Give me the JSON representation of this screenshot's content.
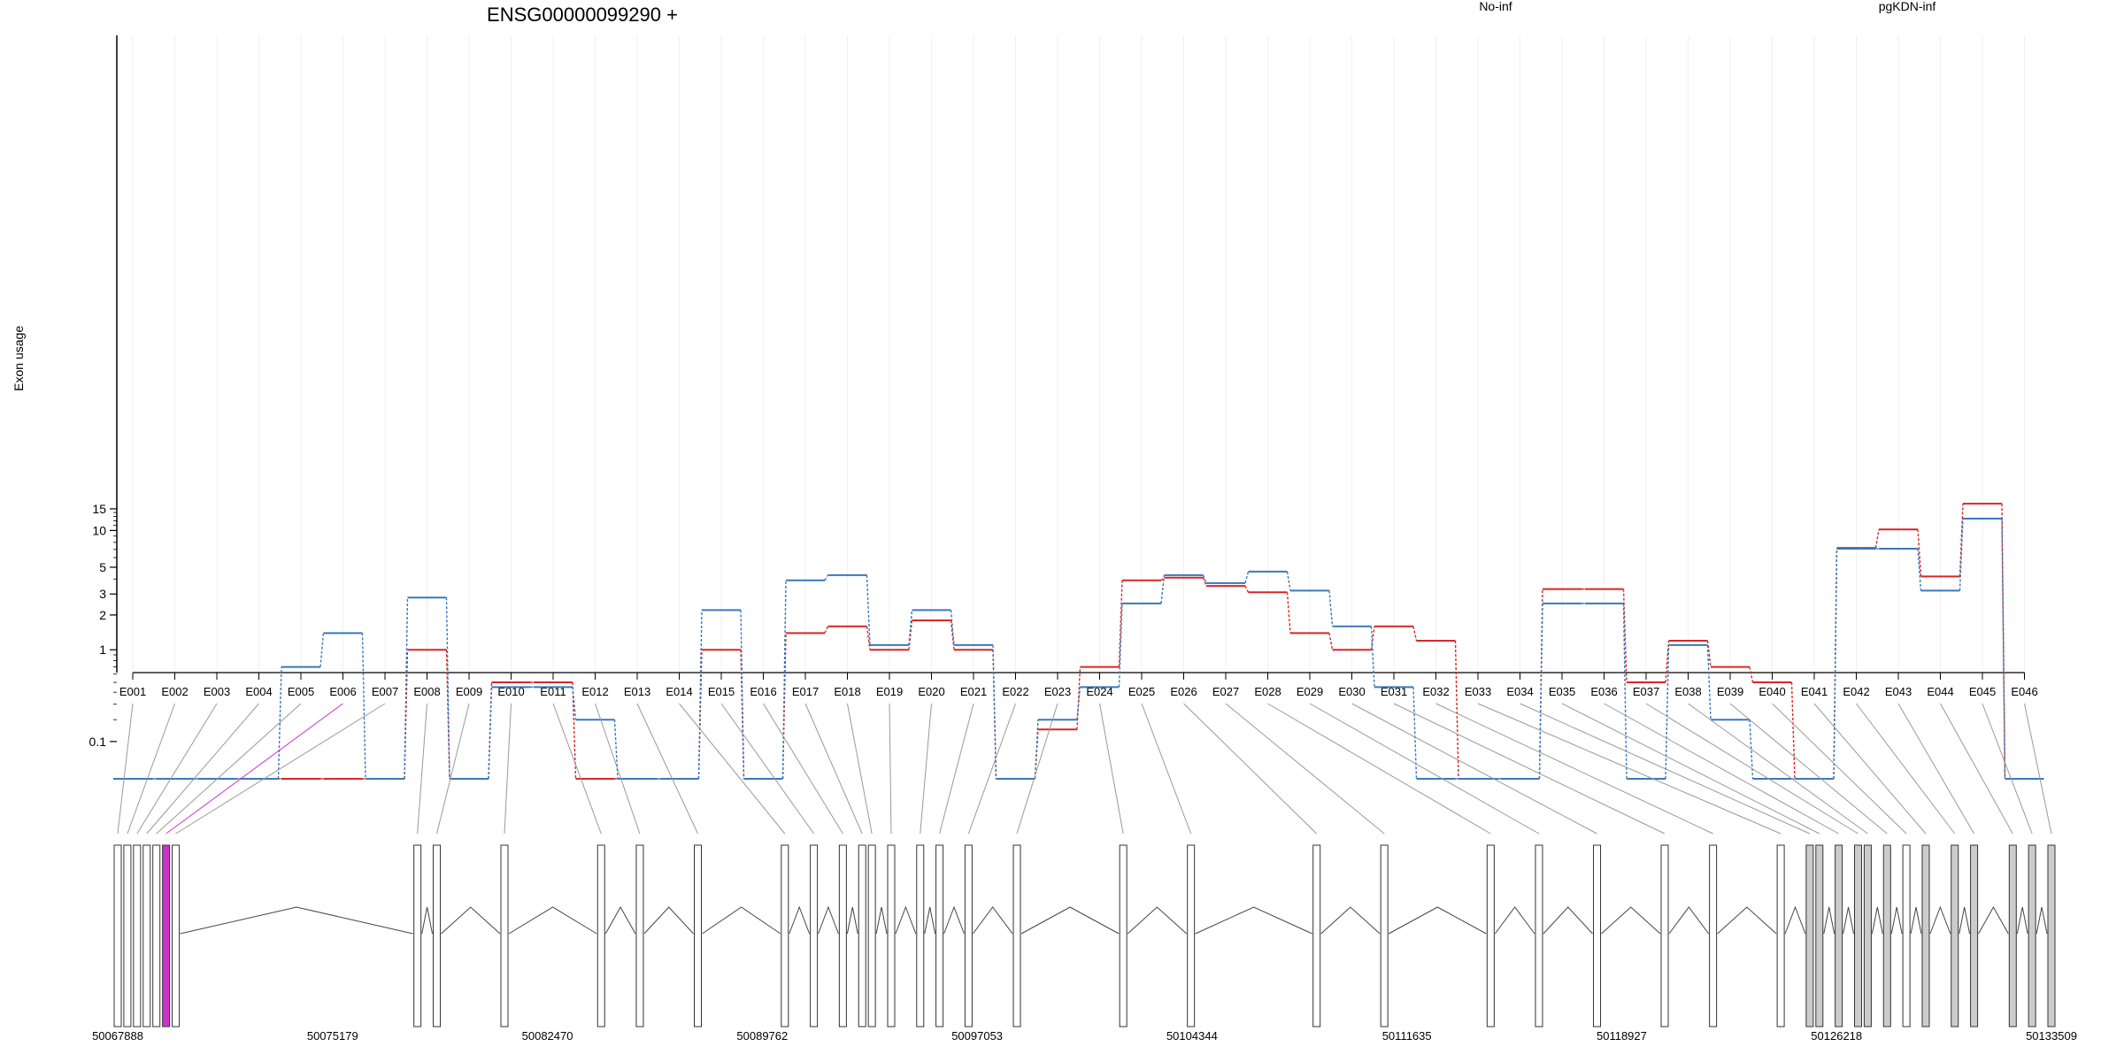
{
  "chart_data": {
    "type": "line",
    "title": "ENSG00000099290 +",
    "ylabel": "Exon usage",
    "yscale": "log-like (value + 0.1)",
    "yticks": [
      0.1,
      1,
      2,
      3,
      5,
      10,
      15
    ],
    "legend_placement": "top",
    "categories": [
      "E001",
      "E002",
      "E003",
      "E004",
      "E005",
      "E006",
      "E007",
      "E008",
      "E009",
      "E010",
      "E011",
      "E012",
      "E013",
      "E014",
      "E015",
      "E016",
      "E017",
      "E018",
      "E019",
      "E020",
      "E021",
      "E022",
      "E023",
      "E024",
      "E025",
      "E026",
      "E027",
      "E028",
      "E029",
      "E030",
      "E031",
      "E032",
      "E033",
      "E034",
      "E035",
      "E036",
      "E037",
      "E038",
      "E039",
      "E040",
      "E041",
      "E042",
      "E043",
      "E044",
      "E045",
      "E046"
    ],
    "series": [
      {
        "name": "No-inf",
        "color": "#d62728",
        "values": [
          0,
          0,
          0,
          0,
          0,
          0,
          0,
          1.0,
          0,
          0.5,
          0.5,
          0,
          0,
          0,
          1.0,
          0,
          1.4,
          1.6,
          1.0,
          1.8,
          1.0,
          0,
          0.15,
          0.7,
          3.9,
          4.1,
          3.5,
          3.1,
          1.4,
          1.0,
          1.6,
          1.2,
          0,
          0,
          3.3,
          3.3,
          0.5,
          1.2,
          0.7,
          0.5,
          0,
          7.2,
          10.2,
          4.2,
          16.5,
          0
        ]
      },
      {
        "name": "pgKDN-inf",
        "color": "#3a78b9",
        "values": [
          0,
          0,
          0,
          0,
          0.7,
          1.4,
          0,
          2.8,
          0,
          0.45,
          0.45,
          0.2,
          0,
          0,
          2.2,
          0,
          3.9,
          4.3,
          1.1,
          2.2,
          1.1,
          0,
          0.2,
          0.45,
          2.5,
          4.3,
          3.7,
          4.6,
          3.2,
          1.6,
          0.45,
          0,
          0,
          0,
          2.5,
          2.5,
          0,
          1.1,
          0.2,
          0,
          0,
          7.1,
          7.1,
          3.2,
          12.5,
          0
        ]
      }
    ],
    "genomic_axis": {
      "ticks": [
        "50067888",
        "50075179",
        "50082470",
        "50089762",
        "50097053",
        "50104344",
        "50111635",
        "50118927",
        "50126218",
        "50133509"
      ],
      "start": 50067888,
      "end": 50133509
    },
    "exon_pos": [
      0,
      0.005,
      0.01,
      0.015,
      0.02,
      0.025,
      0.03,
      0.155,
      0.165,
      0.2,
      0.25,
      0.27,
      0.3,
      0.345,
      0.36,
      0.375,
      0.385,
      0.39,
      0.4,
      0.415,
      0.425,
      0.44,
      0.465,
      0.52,
      0.555,
      0.62,
      0.655,
      0.71,
      0.735,
      0.765,
      0.8,
      0.825,
      0.86,
      0.875,
      0.88,
      0.89,
      0.9,
      0.905,
      0.915,
      0.925,
      0.935,
      0.95,
      0.96,
      0.98,
      0.99,
      1.0
    ],
    "exon_color": [
      "#ffffff",
      "#ffffff",
      "#ffffff",
      "#ffffff",
      "#ffffff",
      "#cc33cc",
      "#ffffff",
      "#ffffff",
      "#ffffff",
      "#ffffff",
      "#ffffff",
      "#ffffff",
      "#ffffff",
      "#ffffff",
      "#ffffff",
      "#ffffff",
      "#ffffff",
      "#ffffff",
      "#ffffff",
      "#ffffff",
      "#ffffff",
      "#ffffff",
      "#ffffff",
      "#ffffff",
      "#ffffff",
      "#ffffff",
      "#ffffff",
      "#ffffff",
      "#ffffff",
      "#ffffff",
      "#ffffff",
      "#ffffff",
      "#ffffff",
      "#cccccc",
      "#cccccc",
      "#cccccc",
      "#cccccc",
      "#cccccc",
      "#cccccc",
      "#ffffff",
      "#cccccc",
      "#cccccc",
      "#cccccc",
      "#cccccc",
      "#cccccc",
      "#cccccc"
    ]
  }
}
